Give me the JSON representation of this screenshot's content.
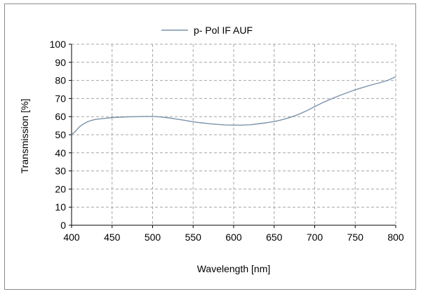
{
  "chart_data": {
    "type": "line",
    "title": "",
    "xlabel": "Wavelength [nm]",
    "ylabel": "Transmission [%]",
    "xlim": [
      400,
      800
    ],
    "ylim": [
      0,
      100
    ],
    "xticks": [
      400,
      450,
      500,
      550,
      600,
      650,
      700,
      750,
      800
    ],
    "yticks": [
      0,
      10,
      20,
      30,
      40,
      50,
      60,
      70,
      80,
      90,
      100
    ],
    "xtick_labels": [
      "400",
      "450",
      "500",
      "550",
      "600",
      "650",
      "700",
      "750",
      "800"
    ],
    "ytick_labels": [
      "0",
      "10",
      "20",
      "30",
      "40",
      "50",
      "60",
      "70",
      "80",
      "90",
      "100"
    ],
    "grid": true,
    "legend_position": "top-center",
    "series": [
      {
        "name": "p- Pol IF AUF",
        "color": "#7b93ab",
        "x": [
          400,
          405,
          410,
          415,
          420,
          425,
          430,
          440,
          450,
          460,
          470,
          480,
          490,
          500,
          510,
          520,
          530,
          540,
          550,
          560,
          570,
          580,
          590,
          600,
          610,
          620,
          630,
          640,
          650,
          660,
          670,
          680,
          690,
          700,
          710,
          720,
          730,
          740,
          750,
          760,
          770,
          780,
          790,
          795,
          800
        ],
        "y": [
          50,
          52,
          54.5,
          56,
          57.2,
          58,
          58.5,
          59,
          59.5,
          59.7,
          59.9,
          60,
          60.1,
          60.1,
          59.8,
          59.3,
          58.6,
          57.9,
          57.1,
          56.6,
          56.1,
          55.7,
          55.4,
          55.3,
          55.3,
          55.5,
          56,
          56.6,
          57.3,
          58.3,
          59.6,
          61.2,
          63.2,
          65.5,
          67.8,
          69.7,
          71.5,
          73.2,
          74.8,
          76.2,
          77.5,
          78.7,
          80,
          81,
          82
        ]
      }
    ]
  }
}
